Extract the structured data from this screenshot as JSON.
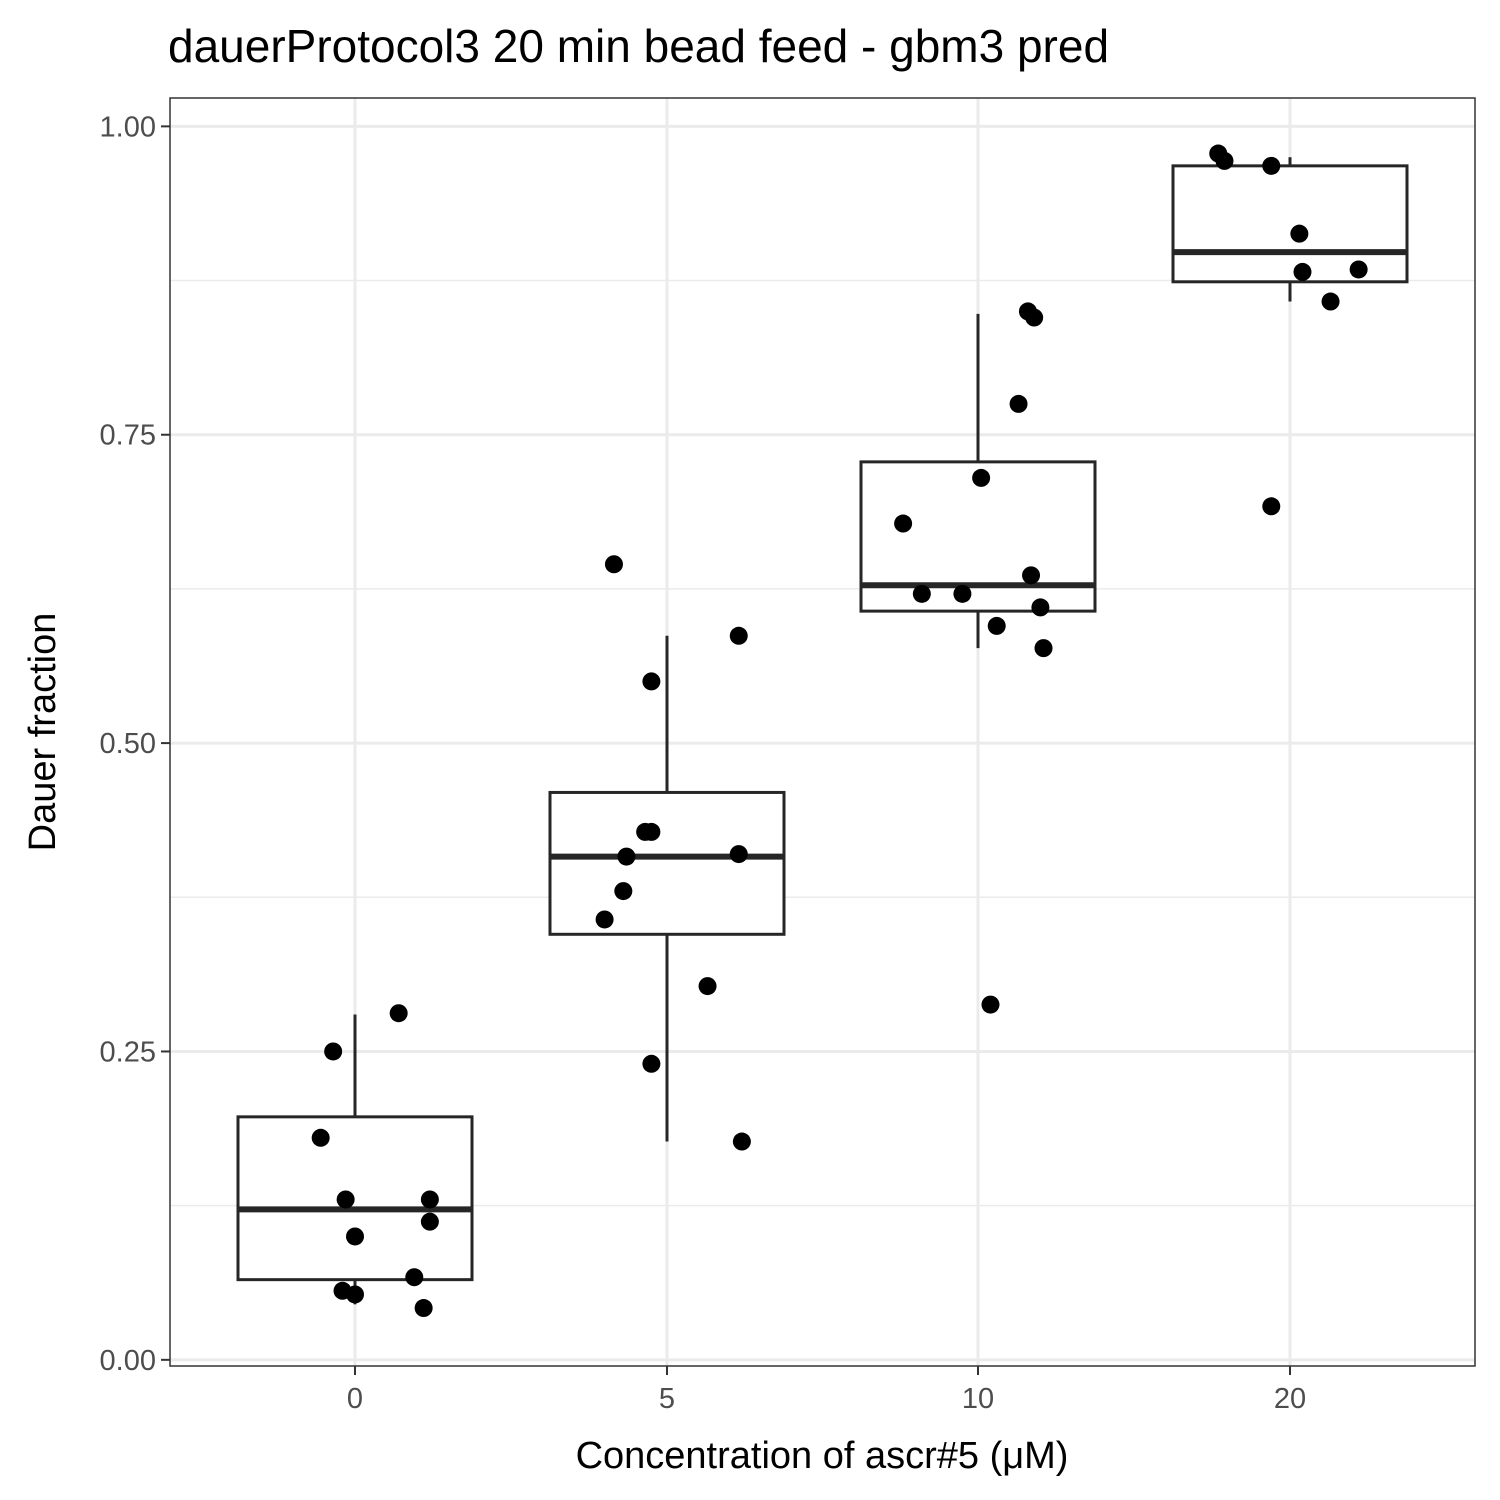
{
  "chart_data": {
    "type": "boxplot",
    "title": "dauerProtocol3 20 min bead feed - gbm3 pred",
    "xlabel": "Concentration of ascr#5 (μM)",
    "ylabel": "Dauer fraction",
    "categories": [
      "0",
      "5",
      "10",
      "20"
    ],
    "ylim": [
      -0.005,
      1.023
    ],
    "yticks": [
      0.0,
      0.25,
      0.5,
      0.75,
      1.0
    ],
    "ytick_labels": [
      "0.00",
      "0.25",
      "0.50",
      "0.75",
      "1.00"
    ],
    "grid": true,
    "boxes": [
      {
        "category": "0",
        "whisker_low": 0.045,
        "q1": 0.065,
        "median": 0.122,
        "q3": 0.197,
        "whisker_high": 0.28
      },
      {
        "category": "5",
        "whisker_low": 0.177,
        "q1": 0.345,
        "median": 0.408,
        "q3": 0.46,
        "whisker_high": 0.587
      },
      {
        "category": "10",
        "whisker_low": 0.577,
        "q1": 0.607,
        "median": 0.628,
        "q3": 0.728,
        "whisker_high": 0.848
      },
      {
        "category": "20",
        "whisker_low": 0.858,
        "q1": 0.874,
        "median": 0.898,
        "q3": 0.968,
        "whisker_high": 0.975
      }
    ],
    "points": [
      {
        "category": "0",
        "jitter": -0.07,
        "y": 0.25
      },
      {
        "category": "0",
        "jitter": 0.14,
        "y": 0.281
      },
      {
        "category": "0",
        "jitter": -0.11,
        "y": 0.18
      },
      {
        "category": "0",
        "jitter": -0.03,
        "y": 0.13
      },
      {
        "category": "0",
        "jitter": 0.24,
        "y": 0.13
      },
      {
        "category": "0",
        "jitter": 0.24,
        "y": 0.112
      },
      {
        "category": "0",
        "jitter": 0.0,
        "y": 0.1
      },
      {
        "category": "0",
        "jitter": 0.19,
        "y": 0.067
      },
      {
        "category": "0",
        "jitter": -0.04,
        "y": 0.056
      },
      {
        "category": "0",
        "jitter": 0.0,
        "y": 0.053
      },
      {
        "category": "0",
        "jitter": 0.22,
        "y": 0.042
      },
      {
        "category": "5",
        "jitter": -0.17,
        "y": 0.645
      },
      {
        "category": "5",
        "jitter": 0.23,
        "y": 0.587
      },
      {
        "category": "5",
        "jitter": -0.05,
        "y": 0.55
      },
      {
        "category": "5",
        "jitter": -0.07,
        "y": 0.428
      },
      {
        "category": "5",
        "jitter": -0.05,
        "y": 0.428
      },
      {
        "category": "5",
        "jitter": -0.13,
        "y": 0.408
      },
      {
        "category": "5",
        "jitter": 0.23,
        "y": 0.41
      },
      {
        "category": "5",
        "jitter": -0.14,
        "y": 0.38
      },
      {
        "category": "5",
        "jitter": -0.2,
        "y": 0.357
      },
      {
        "category": "5",
        "jitter": 0.13,
        "y": 0.303
      },
      {
        "category": "5",
        "jitter": -0.05,
        "y": 0.24
      },
      {
        "category": "5",
        "jitter": 0.24,
        "y": 0.177
      },
      {
        "category": "10",
        "jitter": 0.16,
        "y": 0.85
      },
      {
        "category": "10",
        "jitter": 0.18,
        "y": 0.845
      },
      {
        "category": "10",
        "jitter": 0.13,
        "y": 0.775
      },
      {
        "category": "10",
        "jitter": 0.01,
        "y": 0.715
      },
      {
        "category": "10",
        "jitter": -0.24,
        "y": 0.678
      },
      {
        "category": "10",
        "jitter": 0.17,
        "y": 0.636
      },
      {
        "category": "10",
        "jitter": -0.18,
        "y": 0.621
      },
      {
        "category": "10",
        "jitter": -0.05,
        "y": 0.621
      },
      {
        "category": "10",
        "jitter": 0.2,
        "y": 0.61
      },
      {
        "category": "10",
        "jitter": 0.06,
        "y": 0.595
      },
      {
        "category": "10",
        "jitter": 0.21,
        "y": 0.577
      },
      {
        "category": "10",
        "jitter": 0.04,
        "y": 0.288
      },
      {
        "category": "20",
        "jitter": -0.23,
        "y": 0.978
      },
      {
        "category": "20",
        "jitter": -0.21,
        "y": 0.972
      },
      {
        "category": "20",
        "jitter": -0.06,
        "y": 0.968
      },
      {
        "category": "20",
        "jitter": 0.03,
        "y": 0.913
      },
      {
        "category": "20",
        "jitter": 0.04,
        "y": 0.882
      },
      {
        "category": "20",
        "jitter": 0.22,
        "y": 0.884
      },
      {
        "category": "20",
        "jitter": 0.13,
        "y": 0.858
      },
      {
        "category": "20",
        "jitter": -0.06,
        "y": 0.692
      }
    ]
  }
}
